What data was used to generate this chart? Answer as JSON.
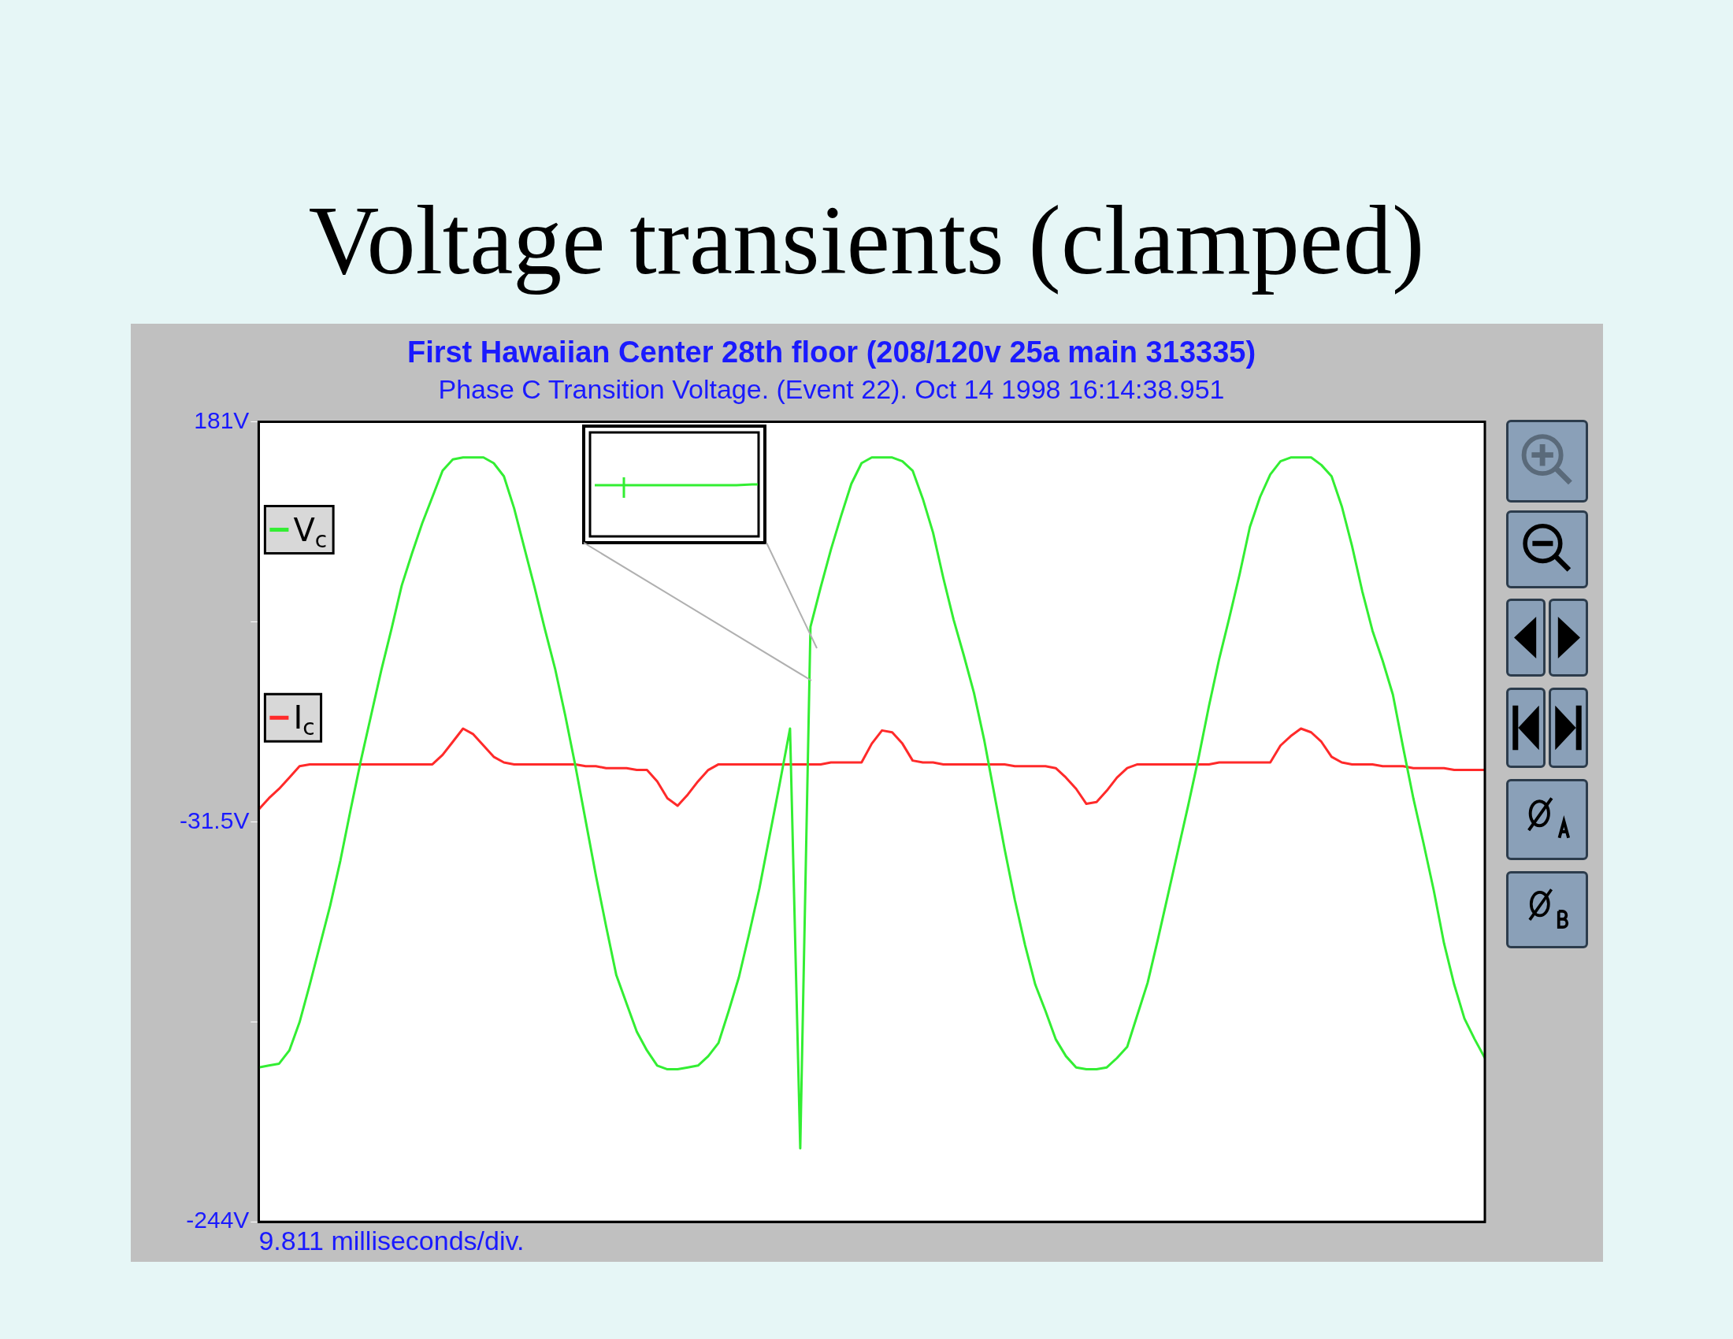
{
  "chart_data": {
    "type": "line",
    "title": "Voltage transients (clamped)",
    "subtitle": "First Hawaiian Center 28th floor (208/120v 25a main 313335)",
    "annotations": [
      "Phase C Transition Voltage. (Event 22). Oct 14 1998 16:14:38.951"
    ],
    "xlabel": "9.811 milliseconds/div.",
    "categories": [
      null,
      null,
      null,
      null,
      null,
      null,
      null,
      null,
      null,
      null,
      null,
      null,
      null,
      null,
      null,
      null,
      null,
      null,
      null,
      null,
      null,
      null,
      null,
      null,
      null,
      null,
      null,
      null,
      null,
      null,
      null,
      null,
      null,
      null,
      null,
      null,
      null,
      null,
      null,
      null,
      null,
      null,
      null,
      null,
      null,
      null,
      null,
      null,
      null,
      null,
      null,
      null,
      null,
      null,
      null,
      null,
      null,
      null,
      null,
      null,
      null,
      null,
      null,
      null,
      null,
      null,
      null,
      null,
      null,
      null,
      null,
      null,
      null,
      null,
      null,
      null,
      null,
      null,
      null,
      null,
      null,
      null,
      null,
      null,
      null,
      null,
      null,
      null,
      null,
      null,
      null,
      null,
      null,
      null,
      null,
      null,
      null,
      null,
      null,
      null,
      null,
      null,
      null,
      null,
      null,
      null,
      null,
      null,
      null,
      null,
      null,
      null,
      null,
      null,
      null,
      null,
      null,
      null,
      null,
      null,
      null
    ],
    "ylim": [
      -244,
      181
    ],
    "yticks": [
      {
        "value": -244,
        "label": "-244V"
      },
      {
        "value": -137.75,
        "label": null
      },
      {
        "value": -31.5,
        "label": "-31.5V"
      },
      {
        "value": 74.75,
        "label": null
      },
      {
        "value": 181,
        "label": "181V"
      }
    ],
    "tick_labels": "y",
    "legend": "top left",
    "marker": "none",
    "series": [
      {
        "name": "V$_{c}$",
        "color": "#33ee33",
        "values": [
          -162,
          -161,
          -160,
          -153,
          -138,
          -118,
          -97,
          -76,
          -52,
          -25,
          1,
          25,
          49,
          71,
          94,
          111,
          127,
          141,
          155,
          161,
          162,
          162,
          162,
          159,
          152,
          135,
          114,
          93,
          71,
          50,
          25,
          -2,
          -31,
          -60,
          -87,
          -113,
          -128,
          -143,
          -153,
          -161,
          -163,
          -163,
          -162,
          -161,
          -156,
          -149,
          -132,
          -114,
          -91,
          -67,
          -39,
          -11,
          18,
          -205,
          72,
          93,
          113,
          131,
          148,
          159,
          162,
          162,
          162,
          160,
          155,
          140,
          122,
          98,
          76,
          57,
          37,
          12,
          -17,
          -46,
          -73,
          -97,
          -118,
          -132,
          -147,
          -156,
          -162,
          -163,
          -163,
          -162,
          -157,
          -151,
          -134,
          -117,
          -94,
          -70,
          -46,
          -22,
          3,
          30,
          55,
          77,
          100,
          125,
          141,
          153,
          160,
          162,
          162,
          162,
          158,
          152,
          136,
          115,
          91,
          70,
          54,
          36,
          8,
          -19,
          -43,
          -68,
          -96,
          -118,
          -136,
          -147,
          -157
        ]
      },
      {
        "name": "I$_{c}$",
        "color": "#ff2a2a",
        "values": [
          -25,
          -19,
          -14,
          -8,
          -2,
          -1,
          -1,
          -1,
          -1,
          -1,
          -1,
          -1,
          -1,
          -1,
          -1,
          -1,
          -1,
          -1,
          4,
          11,
          18,
          15,
          9,
          3,
          0,
          -1,
          -1,
          -1,
          -1,
          -1,
          -1,
          -1,
          -2,
          -2,
          -3,
          -3,
          -3,
          -4,
          -4,
          -10,
          -19,
          -23,
          -17,
          -10,
          -4,
          -1,
          -1,
          -1,
          -1,
          -1,
          -1,
          -1,
          -1,
          -1,
          -1,
          -1,
          0,
          0,
          0,
          0,
          10,
          17,
          16,
          10,
          1,
          0,
          0,
          -1,
          -1,
          -1,
          -1,
          -1,
          -1,
          -1,
          -2,
          -2,
          -2,
          -2,
          -3,
          -8,
          -14,
          -22,
          -21,
          -15,
          -8,
          -3,
          -1,
          -1,
          -1,
          -1,
          -1,
          -1,
          -1,
          -1,
          0,
          0,
          0,
          0,
          0,
          0,
          9,
          14,
          18,
          16,
          11,
          3,
          0,
          -1,
          -1,
          -1,
          -2,
          -2,
          -2,
          -3,
          -3,
          -3,
          -3,
          -4,
          -4,
          -4,
          -4
        ]
      }
    ]
  }
}
